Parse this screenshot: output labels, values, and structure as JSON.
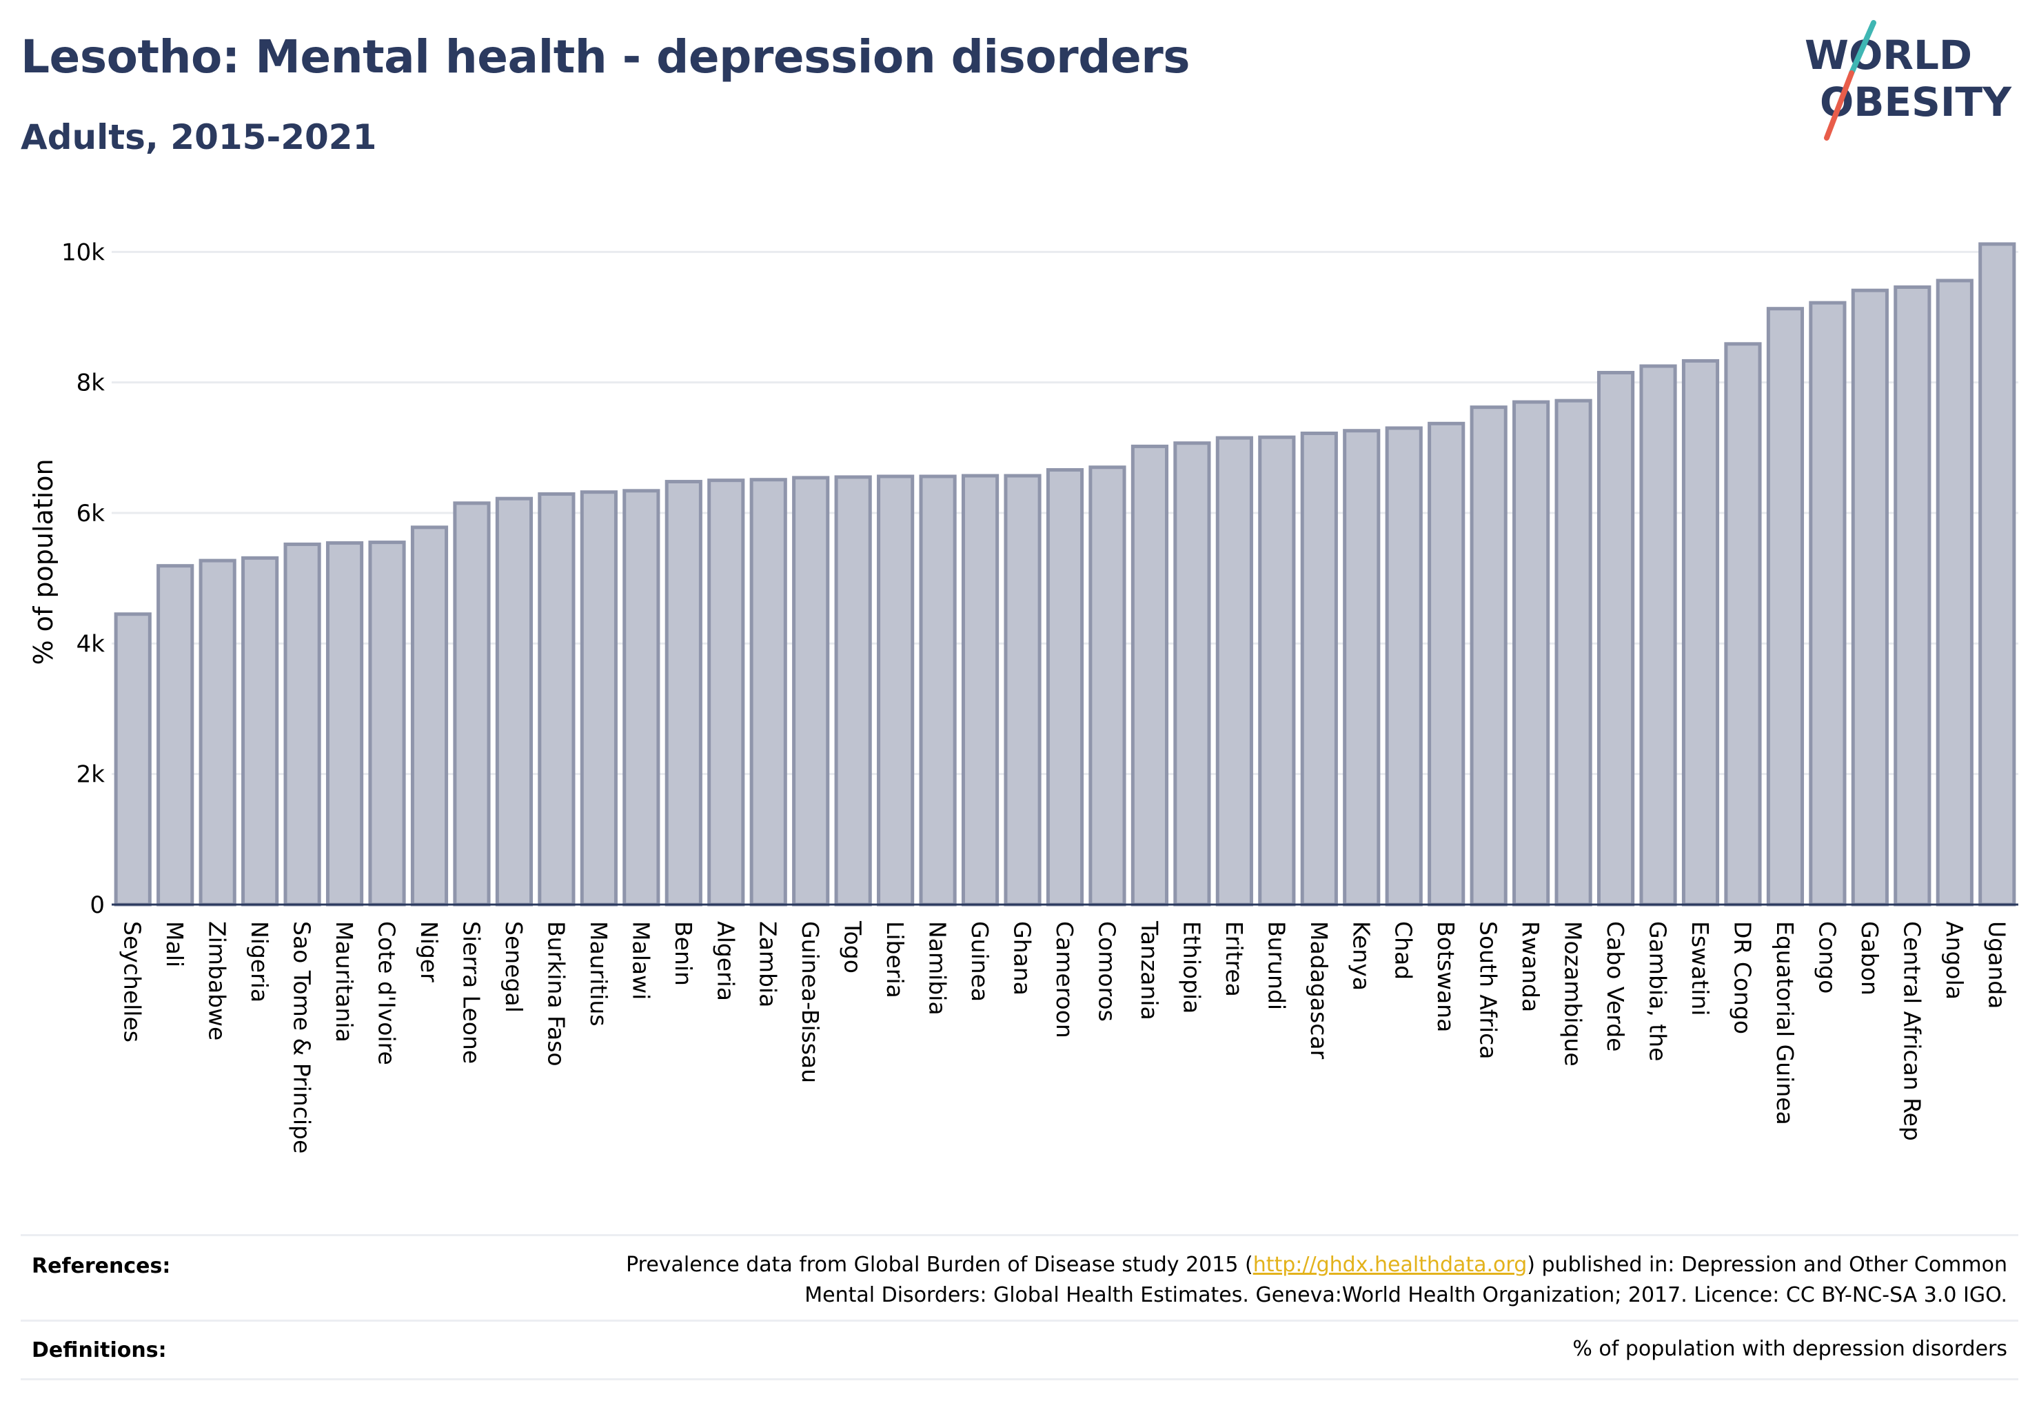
{
  "header": {
    "title": "Lesotho: Mental health - depression disorders",
    "subtitle": "Adults, 2015-2021"
  },
  "logo": {
    "line1": "WORLD",
    "line2": "OBESITY",
    "text_color": "#2b3a5f",
    "slash_colors": [
      "#3fb6b3",
      "#e85d4a"
    ]
  },
  "chart_data": {
    "type": "bar",
    "ylabel": "% of population",
    "ylim": [
      0,
      10500
    ],
    "yticks": [
      0,
      2000,
      4000,
      6000,
      8000,
      10000
    ],
    "ytick_labels": [
      "0",
      "2k",
      "4k",
      "6k",
      "8k",
      "10k"
    ],
    "grid": true,
    "bar_color": "#bfc3d0",
    "bar_edge_color": "#8f95ab",
    "categories": [
      "Seychelles",
      "Mali",
      "Zimbabwe",
      "Nigeria",
      "Sao Tome & Principe",
      "Mauritania",
      "Cote d'Ivoire",
      "Niger",
      "Sierra Leone",
      "Senegal",
      "Burkina Faso",
      "Mauritius",
      "Malawi",
      "Benin",
      "Algeria",
      "Zambia",
      "Guinea-Bissau",
      "Togo",
      "Liberia",
      "Namibia",
      "Guinea",
      "Ghana",
      "Cameroon",
      "Comoros",
      "Tanzania",
      "Ethiopia",
      "Eritrea",
      "Burundi",
      "Madagascar",
      "Kenya",
      "Chad",
      "Botswana",
      "South Africa",
      "Rwanda",
      "Mozambique",
      "Cabo Verde",
      "Gambia, the",
      "Eswatini",
      "DR Congo",
      "Equatorial Guinea",
      "Congo",
      "Gabon",
      "Central African Rep",
      "Angola",
      "Uganda"
    ],
    "values": [
      4450,
      5190,
      5270,
      5310,
      5520,
      5540,
      5550,
      5780,
      6150,
      6220,
      6290,
      6320,
      6340,
      6480,
      6500,
      6510,
      6540,
      6550,
      6560,
      6560,
      6570,
      6570,
      6660,
      6700,
      7020,
      7070,
      7150,
      7160,
      7220,
      7260,
      7300,
      7370,
      7620,
      7700,
      7720,
      8150,
      8250,
      8330,
      8590,
      9130,
      9220,
      9410,
      9460,
      9560,
      10120
    ]
  },
  "references": {
    "label": "References:",
    "text_before": "Prevalence data from Global Burden of Disease study 2015 (",
    "link": "http://ghdx.healthdata.org",
    "text_after": ") published in: Depression and Other Common",
    "line2": "Mental Disorders: Global Health Estimates. Geneva:World Health Organization; 2017. Licence: CC BY-NC-SA 3.0 IGO."
  },
  "definitions": {
    "label": "Definitions:",
    "text": "% of population with depression disorders"
  }
}
